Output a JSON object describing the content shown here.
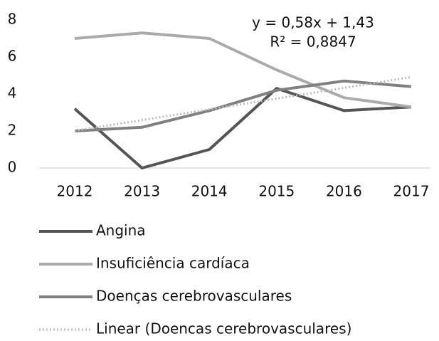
{
  "chart_data": {
    "type": "line",
    "annotations": [
      "y = 0,58x + 1,43",
      "R² = 0,8847"
    ],
    "categories": [
      "2012",
      "2013",
      "2014",
      "2015",
      "2016",
      "2017"
    ],
    "series": [
      {
        "name": "Angina",
        "color": "#555555",
        "values": [
          3.2,
          0.0,
          1.0,
          4.3,
          3.1,
          3.3
        ]
      },
      {
        "name": "Insuficiência cardíaca",
        "color": "#aaaaaa",
        "values": [
          7.0,
          7.3,
          7.0,
          5.3,
          3.8,
          3.3
        ]
      },
      {
        "name": "Doenças cerebrovasculares",
        "color": "#808080",
        "values": [
          2.0,
          2.2,
          3.1,
          4.2,
          4.7,
          4.4
        ]
      },
      {
        "name": "Linear (Doencas cerebrovasculares)",
        "color": "#bbbbbb",
        "dashed": true,
        "values": [
          2.01,
          2.59,
          3.17,
          3.75,
          4.33,
          4.91
        ]
      }
    ],
    "ylim": [
      0,
      8
    ],
    "yticks": [
      0,
      2,
      4,
      6,
      8
    ],
    "grid": false
  }
}
